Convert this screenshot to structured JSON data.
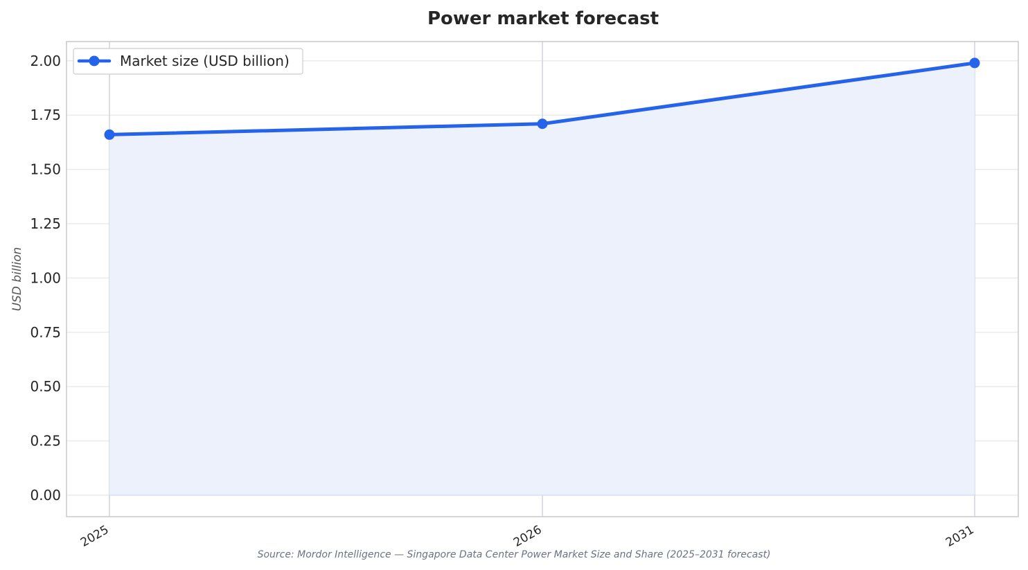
{
  "chart_data": {
    "type": "line",
    "title": "Power market forecast",
    "xlabel": "",
    "ylabel": "USD billion",
    "categories": [
      "2025",
      "2026",
      "2031"
    ],
    "series": [
      {
        "name": "Market size (USD billion)",
        "values": [
          1.66,
          1.71,
          1.99
        ],
        "color": "#2563eb",
        "fill_color": "#ecf1fc"
      }
    ],
    "ylim": [
      -0.1,
      2.09
    ],
    "yticks": [
      "0.00",
      "0.25",
      "0.50",
      "0.75",
      "1.00",
      "1.25",
      "1.50",
      "1.75",
      "2.00"
    ],
    "grid": true,
    "legend_position": "top-left",
    "x_tick_rotation": "angled",
    "source_note": "Source: Mordor Intelligence — Singapore Data Center Power Market Size and Share (2025–2031 forecast)"
  }
}
